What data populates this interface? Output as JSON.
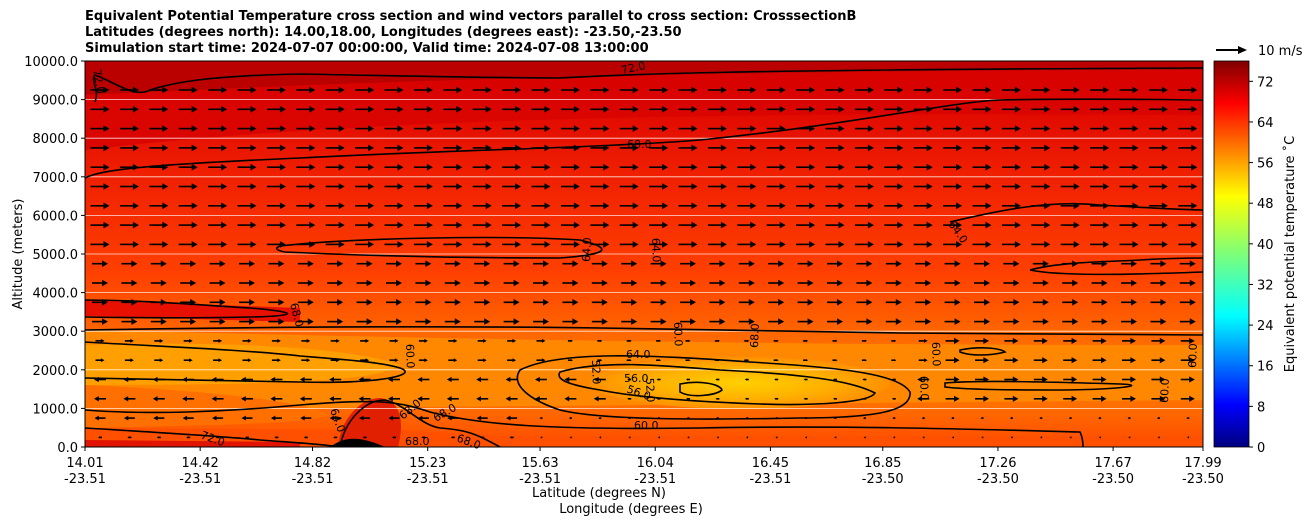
{
  "chart_data": {
    "type": "contour",
    "title": [
      "Equivalent Potential Temperature cross section and wind vectors parallel to cross section: CrosssectionB",
      "Latitudes (degrees north): 14.00,18.00, Longitudes (degrees east): -23.50,-23.50",
      "Simulation start time: 2024-07-07 00:00:00, Valid time: 2024-07-08 13:00:00"
    ],
    "ylabel": "Altitude (meters)",
    "xlabel_lat": "Latitude (degrees N)",
    "xlabel_lon": "Longitude (degrees E)",
    "ylim": [
      0,
      10000
    ],
    "yticks": [
      "0.0",
      "1000.0",
      "2000.0",
      "3000.0",
      "4000.0",
      "5000.0",
      "6000.0",
      "7000.0",
      "8000.0",
      "9000.0",
      "10000.0"
    ],
    "xticks": [
      {
        "lat": "14.01",
        "lon": "-23.51"
      },
      {
        "lat": "14.42",
        "lon": "-23.51"
      },
      {
        "lat": "14.82",
        "lon": "-23.51"
      },
      {
        "lat": "15.23",
        "lon": "-23.51"
      },
      {
        "lat": "15.63",
        "lon": "-23.51"
      },
      {
        "lat": "16.04",
        "lon": "-23.51"
      },
      {
        "lat": "16.45",
        "lon": "-23.51"
      },
      {
        "lat": "16.85",
        "lon": "-23.50"
      },
      {
        "lat": "17.26",
        "lon": "-23.50"
      },
      {
        "lat": "17.67",
        "lon": "-23.50"
      },
      {
        "lat": "17.99",
        "lon": "-23.50"
      }
    ],
    "colorbar": {
      "label": "Equivalent potential temperature $^\\circ$C",
      "display_label": "Equivalent potential temperature ˚C",
      "range": [
        0,
        76
      ],
      "ticks": [
        "0",
        "8",
        "16",
        "24",
        "32",
        "40",
        "48",
        "56",
        "64",
        "72"
      ]
    },
    "quiver_key": {
      "label": "10 m/s"
    },
    "contour_labels": [
      "72.0",
      "68.0",
      "64.0",
      "60.0",
      "56.0",
      "52.0"
    ]
  }
}
